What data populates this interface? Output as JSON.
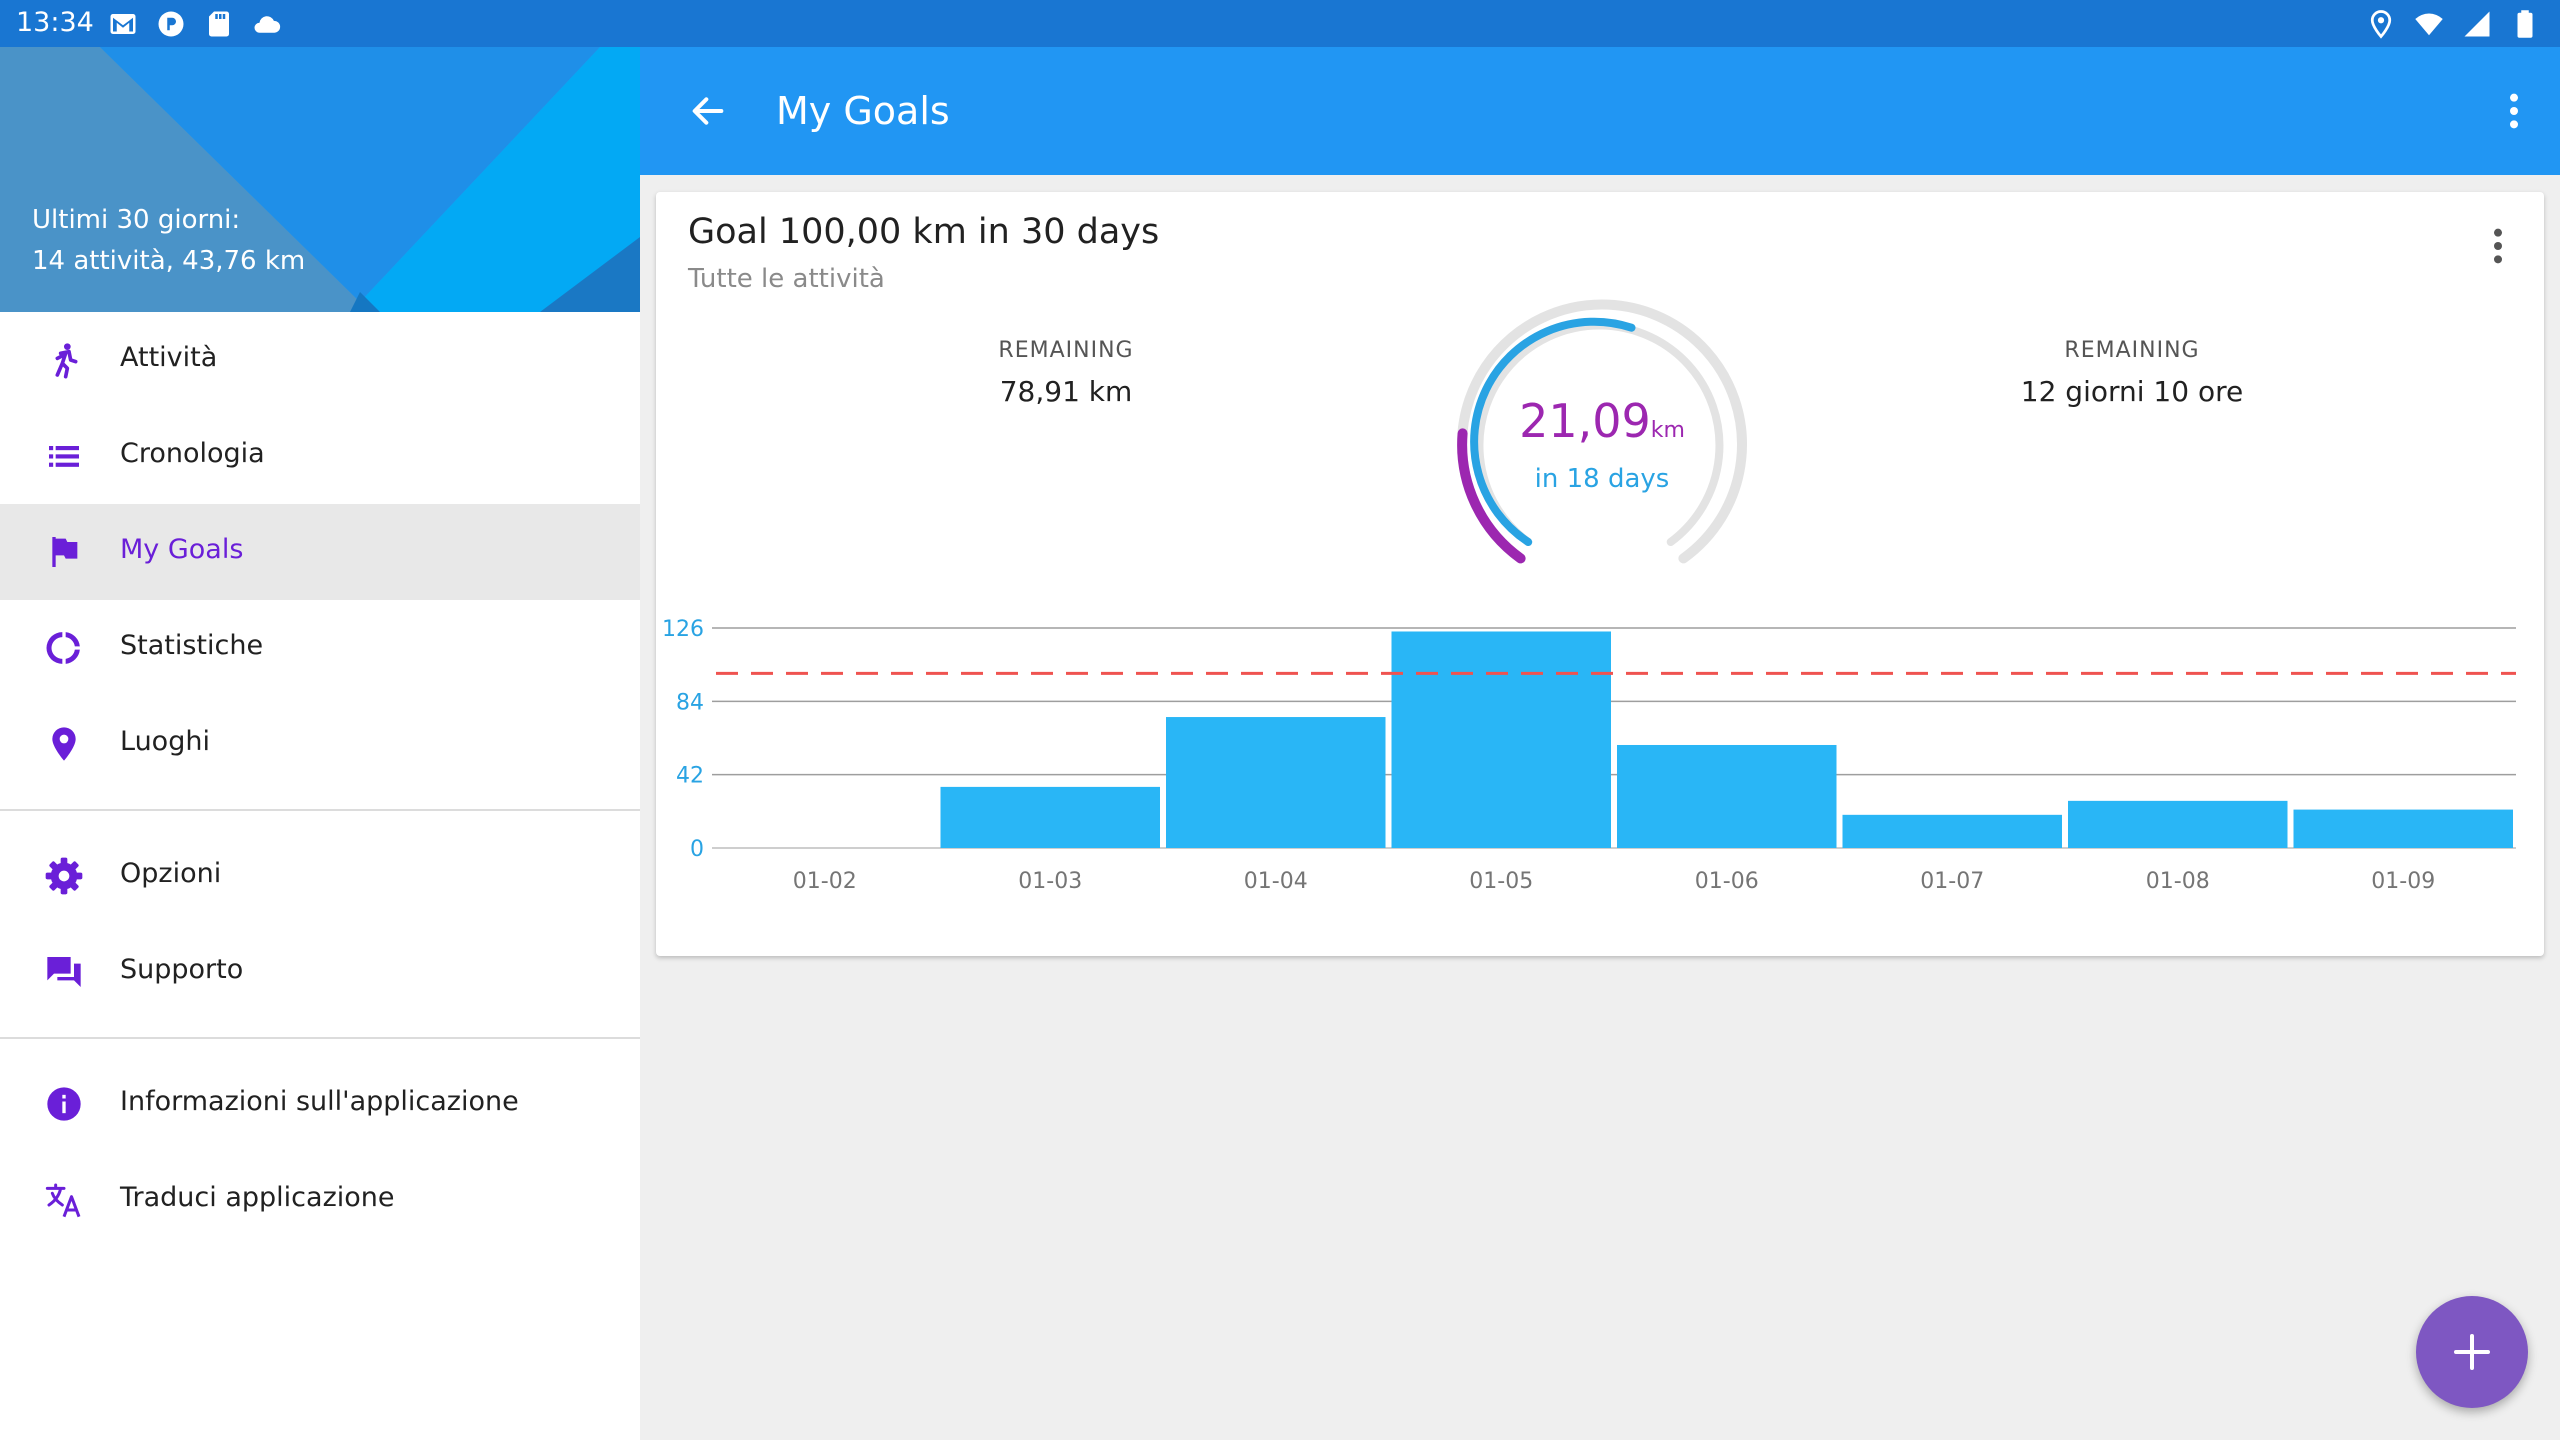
{
  "status_bar": {
    "time": "13:34",
    "left_icons": [
      "gmail-icon",
      "app-icon",
      "sd-card-icon",
      "cloud-icon"
    ],
    "right_icons": [
      "location-icon",
      "wifi-icon",
      "signal-icon",
      "battery-icon"
    ]
  },
  "drawer": {
    "summary_line1": "Ultimi 30 giorni:",
    "summary_line2": "14 attività, 43,76 km",
    "items": [
      {
        "label": "Attività",
        "icon": "run-icon"
      },
      {
        "label": "Cronologia",
        "icon": "list-icon"
      },
      {
        "label": "My Goals",
        "icon": "flag-icon",
        "active": true
      },
      {
        "label": "Statistiche",
        "icon": "ring-chart-icon"
      },
      {
        "label": "Luoghi",
        "icon": "location-pin-icon"
      }
    ],
    "items2": [
      {
        "label": "Opzioni",
        "icon": "gear-icon"
      },
      {
        "label": "Supporto",
        "icon": "forum-icon"
      }
    ],
    "items3": [
      {
        "label": "Informazioni sull'applicazione",
        "icon": "info-icon"
      },
      {
        "label": "Traduci applicazione",
        "icon": "translate-icon"
      }
    ]
  },
  "appbar": {
    "title": "My Goals"
  },
  "goal": {
    "title": "Goal 100,00 km in 30 days",
    "subtitle": "Tutte le attività",
    "remaining_label_left": "REMAINING",
    "remaining_value_left": "78,91 km",
    "remaining_label_right": "REMAINING",
    "remaining_value_right": "12 giorni 10 ore",
    "progress_value": "21,09",
    "progress_unit": "km",
    "progress_days": "in 18 days"
  },
  "chart_data": {
    "type": "bar",
    "categories": [
      "01-02",
      "01-03",
      "01-04",
      "01-05",
      "01-06",
      "01-07",
      "01-08",
      "01-09"
    ],
    "values": [
      0,
      35,
      75,
      124,
      59,
      19,
      27,
      22
    ],
    "y_ticks": [
      0,
      42,
      84,
      126
    ],
    "ylim": [
      0,
      126
    ],
    "target_line": 100,
    "title": "",
    "xlabel": "",
    "ylabel": "",
    "grid": true,
    "legend": "none"
  },
  "colors": {
    "primary": "#2196f3",
    "status_bar": "#1976d2",
    "accent": "#6a1fd8",
    "bar": "#29b6f6",
    "target_line": "#ef5350",
    "fab": "#7e57c2",
    "gauge_purple": "#9c27b0",
    "gauge_blue": "#29a3e3"
  }
}
